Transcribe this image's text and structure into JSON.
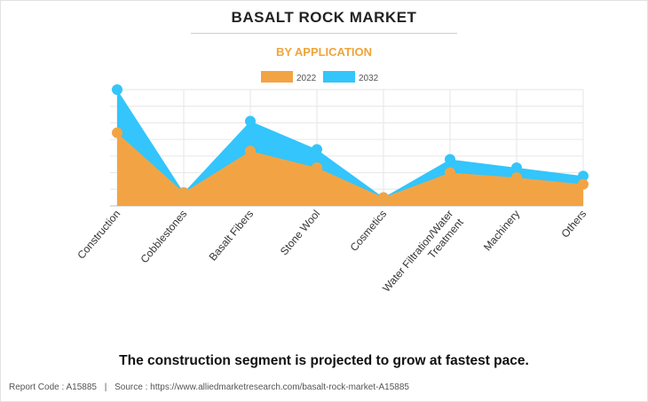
{
  "chart_data": {
    "type": "area",
    "title": "BASALT ROCK MARKET",
    "subtitle": "BY APPLICATION",
    "categories": [
      "Construction",
      "Cobblestones",
      "Basalt Fibers",
      "Stone Wool",
      "Cosmetics",
      "Water Filtration/Water Treatment",
      "Machinery",
      "Others"
    ],
    "series": [
      {
        "name": "2022",
        "values": [
          44,
          8,
          33,
          23,
          5,
          20,
          17,
          13
        ],
        "color": "#f2a445"
      },
      {
        "name": "2032",
        "values": [
          70,
          8,
          51,
          34,
          5,
          28,
          23,
          18
        ],
        "color": "#33c5fb"
      }
    ],
    "ylim": [
      0,
      70
    ],
    "grid": true,
    "legend_position": "top-center",
    "xlabel": "",
    "ylabel": ""
  },
  "caption": "The construction segment is projected to grow at fastest pace.",
  "footer": {
    "report_code": "Report Code : A15885",
    "separator": "|",
    "source": "Source : https://www.alliedmarketresearch.com/basalt-rock-market-A15885"
  }
}
